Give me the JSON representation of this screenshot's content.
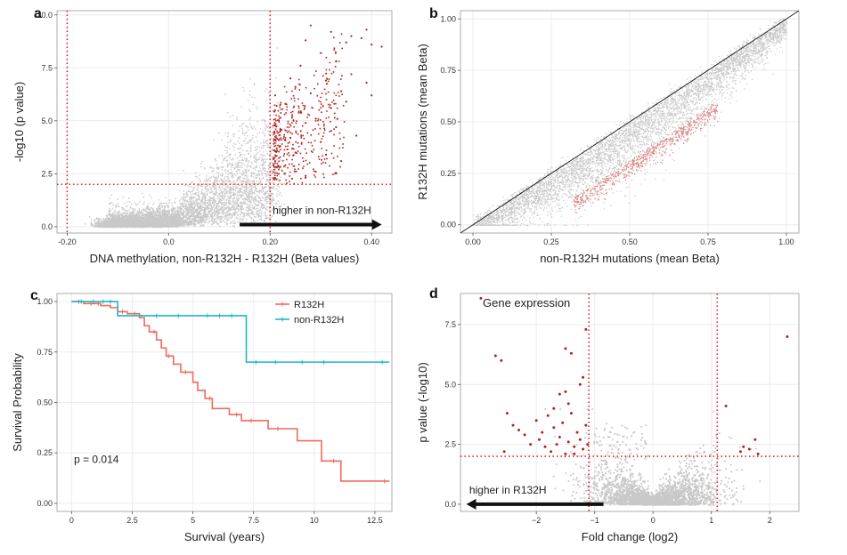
{
  "colors": {
    "grey_points": "#c8c8c8",
    "highlight": "#b22222",
    "threshold_line": "#e32222",
    "r132h": "#ef6b5f",
    "non_r132h": "#1fb8c1",
    "grid": "#ececec",
    "arrow": "#111111"
  },
  "chart_data": [
    {
      "panel": "a",
      "type": "scatter",
      "xlabel": "DNA methylation, non-R132H - R132H (Beta values)",
      "ylabel": "-log10 (p value)",
      "xlim": [
        -0.22,
        0.44
      ],
      "ylim": [
        -0.3,
        10.2
      ],
      "xticks": [
        -0.2,
        0.0,
        0.2,
        0.4
      ],
      "xtick_labels": [
        "-0.20",
        "0.0",
        "0.20",
        "0.40"
      ],
      "yticks": [
        0.0,
        2.5,
        5.0,
        7.5,
        10.0
      ],
      "ytick_labels": [
        "0.0",
        "2.5",
        "5.0",
        "7.5",
        "10.0"
      ],
      "threshold_x": [
        -0.2,
        0.2
      ],
      "threshold_y": [
        2.0
      ],
      "annotation": "higher in non-R132H",
      "arrow_x": [
        0.14,
        0.42
      ],
      "arrow_y": 0.1,
      "highlight_points": [
        [
          0.21,
          3.1
        ],
        [
          0.22,
          4.5
        ],
        [
          0.23,
          5.8
        ],
        [
          0.21,
          6.2
        ],
        [
          0.24,
          7.0
        ],
        [
          0.25,
          6.6
        ],
        [
          0.26,
          5.4
        ],
        [
          0.22,
          3.8
        ],
        [
          0.23,
          2.9
        ],
        [
          0.27,
          4.9
        ],
        [
          0.24,
          4.2
        ],
        [
          0.25,
          3.5
        ],
        [
          0.28,
          6.3
        ],
        [
          0.29,
          5.1
        ],
        [
          0.26,
          7.6
        ],
        [
          0.3,
          8.2
        ],
        [
          0.31,
          6.9
        ],
        [
          0.27,
          8.8
        ],
        [
          0.32,
          9.2
        ],
        [
          0.28,
          9.5
        ],
        [
          0.33,
          7.8
        ],
        [
          0.35,
          8.7
        ],
        [
          0.36,
          9.0
        ],
        [
          0.38,
          8.9
        ],
        [
          0.39,
          9.3
        ],
        [
          0.4,
          8.6
        ],
        [
          0.42,
          8.5
        ],
        [
          0.36,
          7.2
        ],
        [
          0.34,
          6.4
        ],
        [
          0.3,
          4.0
        ],
        [
          0.31,
          3.4
        ],
        [
          0.29,
          2.6
        ],
        [
          0.32,
          5.6
        ],
        [
          0.33,
          4.7
        ],
        [
          0.35,
          5.9
        ],
        [
          0.37,
          4.3
        ],
        [
          0.39,
          6.8
        ],
        [
          0.4,
          6.2
        ],
        [
          0.34,
          3.1
        ],
        [
          0.27,
          2.4
        ]
      ]
    },
    {
      "panel": "b",
      "type": "scatter",
      "xlabel": "non-R132H mutations (mean Beta)",
      "ylabel": "R132H mutations (mean Beta)",
      "xlim": [
        -0.04,
        1.04
      ],
      "ylim": [
        -0.04,
        1.04
      ],
      "xticks": [
        0.0,
        0.25,
        0.5,
        0.75,
        1.0
      ],
      "xtick_labels": [
        "0.00",
        "0.25",
        "0.50",
        "0.75",
        "1.00"
      ],
      "yticks": [
        0.0,
        0.25,
        0.5,
        0.75,
        1.0
      ],
      "ytick_labels": [
        "0.00",
        "0.25",
        "0.50",
        "0.75",
        "1.00"
      ],
      "diagonal": true
    },
    {
      "panel": "c",
      "type": "line",
      "subtype": "kaplan-meier",
      "xlabel": "Survival (years)",
      "ylabel": "Survival Probability",
      "xlim": [
        -0.6,
        13.2
      ],
      "ylim": [
        -0.04,
        1.04
      ],
      "xticks": [
        0,
        2.5,
        5,
        7.5,
        10,
        12.5
      ],
      "xtick_labels": [
        "0",
        "2.5",
        "5",
        "7.5",
        "10",
        "12.5"
      ],
      "yticks": [
        0.0,
        0.25,
        0.5,
        0.75,
        1.0
      ],
      "ytick_labels": [
        "0.00",
        "0.25",
        "0.50",
        "0.75",
        "1.00"
      ],
      "legend_position": "top-right",
      "annotation": "p = 0.014",
      "series": [
        {
          "name": "R132H",
          "steps": [
            [
              0,
              1.0
            ],
            [
              0.5,
              0.99
            ],
            [
              1.2,
              0.98
            ],
            [
              1.6,
              0.97
            ],
            [
              1.9,
              0.95
            ],
            [
              2.3,
              0.94
            ],
            [
              2.8,
              0.92
            ],
            [
              3.0,
              0.88
            ],
            [
              3.2,
              0.85
            ],
            [
              3.5,
              0.81
            ],
            [
              3.7,
              0.77
            ],
            [
              3.9,
              0.73
            ],
            [
              4.2,
              0.69
            ],
            [
              4.5,
              0.65
            ],
            [
              5.0,
              0.6
            ],
            [
              5.2,
              0.56
            ],
            [
              5.5,
              0.52
            ],
            [
              5.8,
              0.47
            ],
            [
              6.5,
              0.44
            ],
            [
              7.0,
              0.41
            ],
            [
              8.1,
              0.37
            ],
            [
              9.3,
              0.31
            ],
            [
              10.3,
              0.21
            ],
            [
              11.1,
              0.11
            ],
            [
              13.1,
              0.11
            ]
          ],
          "censors": [
            [
              0.3,
              1.0
            ],
            [
              0.8,
              0.99
            ],
            [
              1.1,
              0.99
            ],
            [
              2.1,
              0.95
            ],
            [
              2.6,
              0.94
            ],
            [
              3.4,
              0.85
            ],
            [
              4.0,
              0.73
            ],
            [
              4.7,
              0.65
            ],
            [
              5.7,
              0.52
            ],
            [
              6.8,
              0.44
            ],
            [
              7.4,
              0.41
            ],
            [
              8.5,
              0.37
            ],
            [
              10.8,
              0.21
            ],
            [
              12.9,
              0.11
            ]
          ]
        },
        {
          "name": "non-R132H",
          "steps": [
            [
              0,
              1.0
            ],
            [
              1.9,
              0.93
            ],
            [
              7.2,
              0.93
            ],
            [
              7.2,
              0.7
            ],
            [
              13.1,
              0.7
            ]
          ],
          "censors": [
            [
              0.4,
              1.0
            ],
            [
              0.9,
              1.0
            ],
            [
              1.3,
              1.0
            ],
            [
              1.6,
              1.0
            ],
            [
              3.5,
              0.93
            ],
            [
              4.4,
              0.93
            ],
            [
              5.6,
              0.93
            ],
            [
              6.1,
              0.93
            ],
            [
              6.6,
              0.93
            ],
            [
              7.6,
              0.7
            ],
            [
              8.4,
              0.7
            ],
            [
              9.5,
              0.7
            ],
            [
              10.4,
              0.7
            ],
            [
              12.8,
              0.7
            ]
          ]
        }
      ]
    },
    {
      "panel": "d",
      "type": "scatter",
      "xlabel": "Fold change (log2)",
      "ylabel": "p value (-log10)",
      "title": "Gene expression",
      "xlim": [
        -3.3,
        2.5
      ],
      "ylim": [
        -0.3,
        8.8
      ],
      "xticks": [
        -2,
        -1,
        0,
        1,
        2
      ],
      "xtick_labels": [
        "−2",
        "−1",
        "0",
        "1",
        "2"
      ],
      "yticks": [
        0.0,
        2.5,
        5.0,
        7.5
      ],
      "ytick_labels": [
        "0.0",
        "2.5",
        "5.0",
        "7.5"
      ],
      "threshold_x": [
        -1.1,
        1.1
      ],
      "threshold_y": [
        2.0
      ],
      "annotation": "higher in R132H",
      "arrow_x": [
        -0.85,
        -3.2
      ],
      "arrow_y": 0.0,
      "highlight_points": [
        [
          -2.95,
          8.6
        ],
        [
          -2.7,
          6.2
        ],
        [
          -2.6,
          6.0
        ],
        [
          -1.5,
          6.5
        ],
        [
          -1.4,
          6.3
        ],
        [
          -1.15,
          7.3
        ],
        [
          -1.2,
          5.3
        ],
        [
          -1.25,
          5.0
        ],
        [
          -1.5,
          4.7
        ],
        [
          -1.6,
          4.6
        ],
        [
          -2.5,
          3.8
        ],
        [
          -2.4,
          3.3
        ],
        [
          -2.3,
          3.1
        ],
        [
          -2.2,
          2.9
        ],
        [
          -2.0,
          3.5
        ],
        [
          -1.9,
          3.0
        ],
        [
          -1.8,
          3.7
        ],
        [
          -1.7,
          3.2
        ],
        [
          -1.6,
          2.8
        ],
        [
          -1.55,
          3.4
        ],
        [
          -1.45,
          2.6
        ],
        [
          -1.4,
          3.8
        ],
        [
          -1.35,
          2.4
        ],
        [
          -1.3,
          3.0
        ],
        [
          -1.25,
          2.7
        ],
        [
          -1.2,
          2.3
        ],
        [
          -1.15,
          3.3
        ],
        [
          -1.85,
          2.4
        ],
        [
          -2.1,
          2.5
        ],
        [
          -1.75,
          2.2
        ],
        [
          -1.65,
          2.5
        ],
        [
          -1.5,
          2.1
        ],
        [
          -1.95,
          2.7
        ],
        [
          -2.55,
          2.2
        ],
        [
          -1.35,
          2.1
        ],
        [
          -1.12,
          2.5
        ],
        [
          -1.7,
          4.0
        ],
        [
          -1.45,
          4.2
        ],
        [
          2.3,
          7.0
        ],
        [
          1.25,
          4.1
        ],
        [
          1.5,
          2.2
        ],
        [
          1.55,
          2.4
        ],
        [
          1.75,
          2.7
        ],
        [
          1.65,
          2.3
        ],
        [
          1.8,
          2.1
        ]
      ]
    }
  ]
}
